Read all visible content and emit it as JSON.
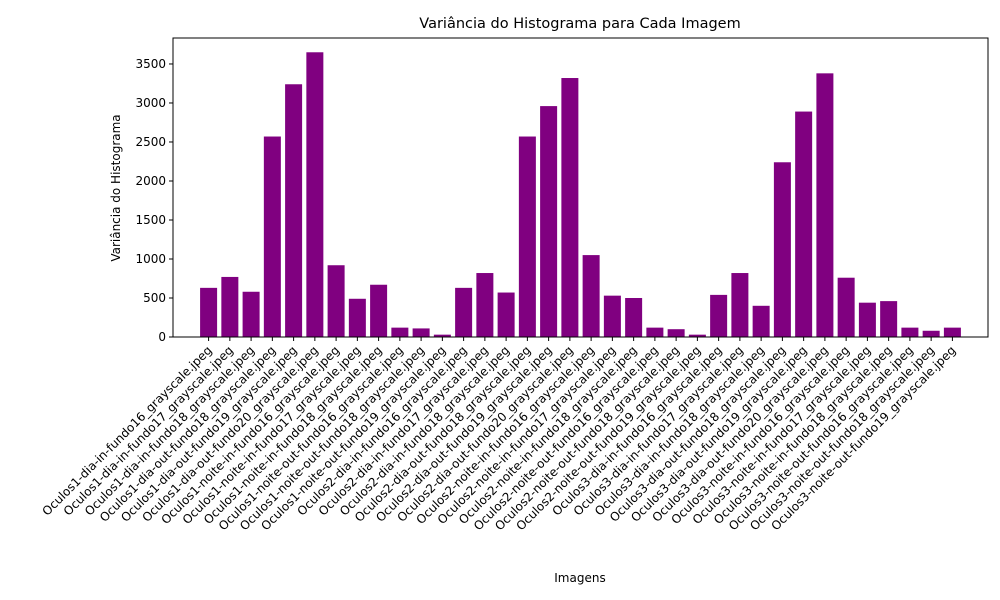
{
  "chart_data": {
    "type": "bar",
    "title": "Variância do Histograma para Cada Imagem",
    "xlabel": "Imagens",
    "ylabel": "Variância do Histograma",
    "color": "#800080",
    "categories": [
      "Oculos1-dia-in-fundo16_grayscale.jpeg",
      "Oculos1-dia-in-fundo17_grayscale.jpeg",
      "Oculos1-dia-in-fundo18_grayscale.jpeg",
      "Oculos1-dia-out-fundo18_grayscale.jpeg",
      "Oculos1-dia-out-fundo19_grayscale.jpeg",
      "Oculos1-dia-out-fundo20_grayscale.jpeg",
      "Oculos1-noite-in-fundo16_grayscale.jpeg",
      "Oculos1-noite-in-fundo17_grayscale.jpeg",
      "Oculos1-noite-in-fundo18_grayscale.jpeg",
      "Oculos1-noite-out-fundo16_grayscale.jpeg",
      "Oculos1-noite-out-fundo18_grayscale.jpeg",
      "Oculos1-noite-out-fundo19_grayscale.jpeg",
      "Oculos2-dia-in-fundo16_grayscale.jpeg",
      "Oculos2-dia-in-fundo17_grayscale.jpeg",
      "Oculos2-dia-in-fundo18_grayscale.jpeg",
      "Oculos2-dia-out-fundo18_grayscale.jpeg",
      "Oculos2-dia-out-fundo19_grayscale.jpeg",
      "Oculos2-dia-out-fundo20_grayscale.jpeg",
      "Oculos2-noite-in-fundo16_grayscale.jpeg",
      "Oculos2-noite-in-fundo17_grayscale.jpeg",
      "Oculos2-noite-in-fundo18_grayscale.jpeg",
      "Oculos2-noite-out-fundo16_grayscale.jpeg",
      "Oculos2-noite-out-fundo18_grayscale.jpeg",
      "Oculos2-noite-out-fundo19_grayscale.jpeg",
      "Oculos3-dia-in-fundo16_grayscale.jpeg",
      "Oculos3-dia-in-fundo17_grayscale.jpeg",
      "Oculos3-dia-in-fundo18_grayscale.jpeg",
      "Oculos3-dia-out-fundo18_grayscale.jpeg",
      "Oculos3-dia-out-fundo19_grayscale.jpeg",
      "Oculos3-dia-out-fundo20_grayscale.jpeg",
      "Oculos3-noite-in-fundo16_grayscale.jpeg",
      "Oculos3-noite-in-fundo17_grayscale.jpeg",
      "Oculos3-noite-in-fundo18_grayscale.jpeg",
      "Oculos3-noite-out-fundo16_grayscale.jpeg",
      "Oculos3-noite-out-fundo18_grayscale.jpeg",
      "Oculos3-noite-out-fundo19_grayscale.jpeg"
    ],
    "values": [
      630,
      770,
      580,
      2570,
      3240,
      3650,
      920,
      490,
      670,
      120,
      110,
      30,
      630,
      820,
      570,
      2570,
      2960,
      3320,
      1050,
      530,
      500,
      120,
      100,
      30,
      540,
      820,
      400,
      2240,
      2890,
      3380,
      760,
      440,
      460,
      120,
      80,
      120
    ],
    "ylim": [
      0,
      3833
    ],
    "yticks": [
      0,
      500,
      1000,
      1500,
      2000,
      2500,
      3000,
      3500
    ]
  }
}
